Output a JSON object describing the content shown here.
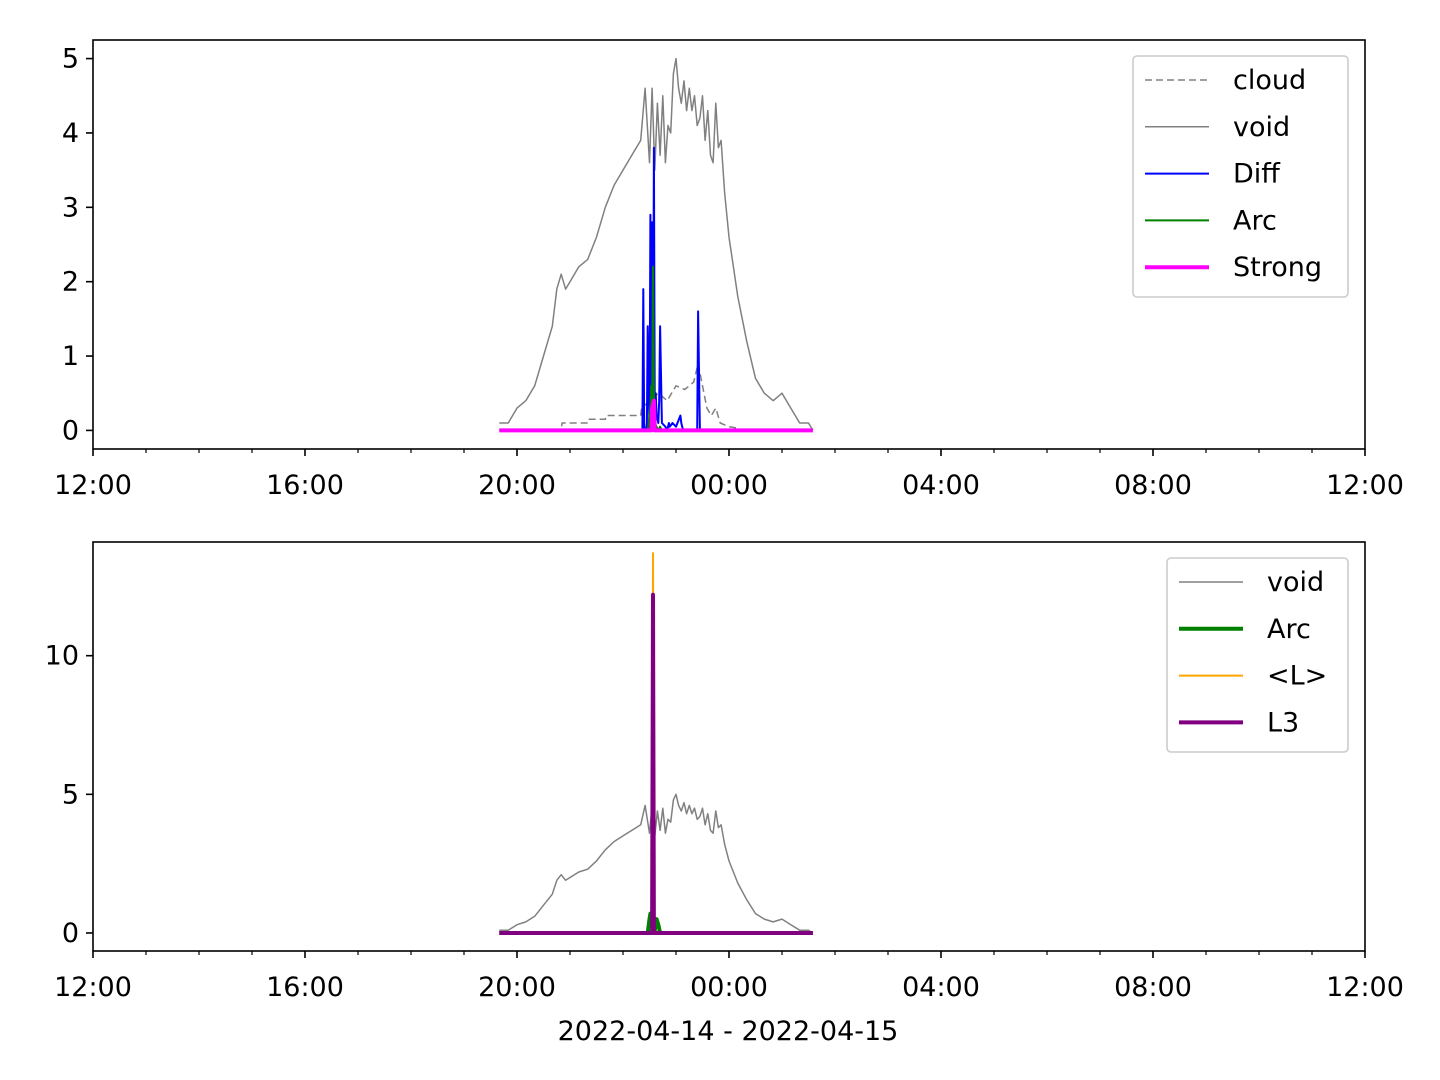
{
  "chart_data": [
    {
      "type": "line",
      "title": "",
      "xlabel": "",
      "ylabel": "",
      "xlim": [
        "2022-04-14T12:00",
        "2022-04-15T12:00"
      ],
      "ylim": [
        -0.25,
        5.25
      ],
      "xticks": [
        "12:00",
        "16:00",
        "20:00",
        "00:00",
        "04:00",
        "08:00",
        "12:00"
      ],
      "xtick_times": [
        "2022-04-14T12:00",
        "2022-04-14T16:00",
        "2022-04-14T20:00",
        "2022-04-15T00:00",
        "2022-04-15T04:00",
        "2022-04-15T08:00",
        "2022-04-15T12:00"
      ],
      "yticks": [
        0,
        1,
        2,
        3,
        4,
        5
      ],
      "legend_position": "upper right",
      "grid": false,
      "series": [
        {
          "name": "cloud",
          "color": "#808080",
          "style": "dashed",
          "width": 1.5,
          "x": [
            "2022-04-14T19:40",
            "2022-04-14T20:50",
            "2022-04-14T20:51",
            "2022-04-14T21:20",
            "2022-04-14T21:21",
            "2022-04-14T21:40",
            "2022-04-14T21:41",
            "2022-04-14T22:20",
            "2022-04-14T22:21",
            "2022-04-14T22:40",
            "2022-04-14T22:50",
            "2022-04-14T23:00",
            "2022-04-14T23:10",
            "2022-04-14T23:20",
            "2022-04-14T23:25",
            "2022-04-14T23:30",
            "2022-04-14T23:35",
            "2022-04-14T23:40",
            "2022-04-14T23:45",
            "2022-04-14T23:50",
            "2022-04-15T00:00",
            "2022-04-15T00:10",
            "2022-04-15T00:15"
          ],
          "y": [
            0,
            0,
            0.1,
            0.1,
            0.15,
            0.15,
            0.2,
            0.2,
            0.3,
            0.5,
            0.4,
            0.6,
            0.55,
            0.65,
            0.9,
            0.6,
            0.3,
            0.2,
            0.3,
            0.1,
            0.05,
            0.03,
            0
          ]
        },
        {
          "name": "void",
          "color": "#808080",
          "style": "solid",
          "width": 1.5,
          "x": [
            "2022-04-14T19:40",
            "2022-04-14T19:50",
            "2022-04-14T20:00",
            "2022-04-14T20:10",
            "2022-04-14T20:20",
            "2022-04-14T20:30",
            "2022-04-14T20:40",
            "2022-04-14T20:45",
            "2022-04-14T20:50",
            "2022-04-14T20:55",
            "2022-04-14T21:00",
            "2022-04-14T21:10",
            "2022-04-14T21:20",
            "2022-04-14T21:30",
            "2022-04-14T21:40",
            "2022-04-14T21:50",
            "2022-04-14T22:00",
            "2022-04-14T22:10",
            "2022-04-14T22:20",
            "2022-04-14T22:25",
            "2022-04-14T22:30",
            "2022-04-14T22:33",
            "2022-04-14T22:36",
            "2022-04-14T22:39",
            "2022-04-14T22:42",
            "2022-04-14T22:45",
            "2022-04-14T22:48",
            "2022-04-14T22:51",
            "2022-04-14T22:54",
            "2022-04-14T22:57",
            "2022-04-14T23:00",
            "2022-04-14T23:03",
            "2022-04-14T23:06",
            "2022-04-14T23:09",
            "2022-04-14T23:12",
            "2022-04-14T23:15",
            "2022-04-14T23:18",
            "2022-04-14T23:21",
            "2022-04-14T23:24",
            "2022-04-14T23:27",
            "2022-04-14T23:30",
            "2022-04-14T23:33",
            "2022-04-14T23:36",
            "2022-04-14T23:39",
            "2022-04-14T23:42",
            "2022-04-14T23:45",
            "2022-04-14T23:48",
            "2022-04-14T23:51",
            "2022-04-14T23:55",
            "2022-04-15T00:00",
            "2022-04-15T00:10",
            "2022-04-15T00:20",
            "2022-04-15T00:30",
            "2022-04-15T00:40",
            "2022-04-15T00:50",
            "2022-04-15T01:00",
            "2022-04-15T01:10",
            "2022-04-15T01:20",
            "2022-04-15T01:30",
            "2022-04-15T01:35"
          ],
          "y": [
            0.1,
            0.1,
            0.3,
            0.4,
            0.6,
            1.0,
            1.4,
            1.9,
            2.1,
            1.9,
            2.0,
            2.2,
            2.3,
            2.6,
            3.0,
            3.3,
            3.5,
            3.7,
            3.9,
            4.6,
            3.6,
            4.6,
            3.5,
            4.4,
            3.7,
            4.5,
            3.6,
            4.1,
            4.0,
            4.8,
            5.0,
            4.6,
            4.4,
            4.7,
            4.3,
            4.6,
            4.3,
            4.5,
            4.1,
            4.2,
            4.5,
            3.9,
            4.3,
            3.7,
            3.6,
            4.4,
            3.8,
            3.9,
            3.2,
            2.6,
            1.8,
            1.2,
            0.7,
            0.5,
            0.4,
            0.5,
            0.3,
            0.1,
            0.1,
            0.0
          ]
        },
        {
          "name": "Diff",
          "color": "#0000ff",
          "style": "solid",
          "width": 2,
          "x": [
            "2022-04-14T22:20",
            "2022-04-14T22:22",
            "2022-04-14T22:23",
            "2022-04-14T22:24",
            "2022-04-14T22:26",
            "2022-04-14T22:27",
            "2022-04-14T22:28",
            "2022-04-14T22:30",
            "2022-04-14T22:31",
            "2022-04-14T22:32",
            "2022-04-14T22:33",
            "2022-04-14T22:34",
            "2022-04-14T22:35",
            "2022-04-14T22:36",
            "2022-04-14T22:37",
            "2022-04-14T22:38",
            "2022-04-14T22:40",
            "2022-04-14T22:41",
            "2022-04-14T22:42",
            "2022-04-14T22:44",
            "2022-04-14T22:48",
            "2022-04-14T22:50",
            "2022-04-14T22:52",
            "2022-04-14T22:53",
            "2022-04-14T22:56",
            "2022-04-14T23:00",
            "2022-04-14T23:05",
            "2022-04-14T23:06",
            "2022-04-14T23:08",
            "2022-04-14T23:10",
            "2022-04-14T23:20",
            "2022-04-14T23:24",
            "2022-04-14T23:25",
            "2022-04-14T23:27",
            "2022-04-14T23:30",
            "2022-04-15T00:00"
          ],
          "y": [
            0,
            0,
            1.9,
            0,
            0,
            0.1,
            1.4,
            0,
            2.9,
            0,
            2.8,
            0,
            3.8,
            0.1,
            0.5,
            0.2,
            0.1,
            0.4,
            1.4,
            0.1,
            0.05,
            0,
            0.1,
            0.05,
            0.1,
            0.05,
            0.2,
            0.1,
            0,
            0,
            0,
            0,
            1.6,
            0,
            0,
            0
          ]
        },
        {
          "name": "Arc",
          "color": "#008000",
          "style": "solid",
          "width": 2,
          "x": [
            "2022-04-14T22:28",
            "2022-04-14T22:31",
            "2022-04-14T22:32",
            "2022-04-14T22:33",
            "2022-04-14T22:34",
            "2022-04-14T22:35",
            "2022-04-14T22:36",
            "2022-04-14T22:40",
            "2022-04-14T22:42",
            "2022-04-14T22:44"
          ],
          "y": [
            0,
            0.3,
            0.6,
            0.2,
            2.2,
            0.5,
            0.1,
            0,
            0.05,
            0
          ]
        },
        {
          "name": "Strong",
          "color": "#ff00ff",
          "style": "solid",
          "width": 4,
          "x": [
            "2022-04-14T19:40",
            "2022-04-14T22:32",
            "2022-04-14T22:33",
            "2022-04-14T22:35",
            "2022-04-14T22:36",
            "2022-04-15T01:35"
          ],
          "y": [
            0,
            0,
            0.3,
            0.4,
            0,
            0
          ]
        }
      ]
    },
    {
      "type": "line",
      "title": "",
      "xlabel": "2022-04-14 - 2022-04-15",
      "ylabel": "",
      "xlim": [
        "2022-04-14T12:00",
        "2022-04-15T12:00"
      ],
      "ylim": [
        -0.65,
        14.1
      ],
      "xticks": [
        "12:00",
        "16:00",
        "20:00",
        "00:00",
        "04:00",
        "08:00",
        "12:00"
      ],
      "xtick_times": [
        "2022-04-14T12:00",
        "2022-04-14T16:00",
        "2022-04-14T20:00",
        "2022-04-15T00:00",
        "2022-04-15T04:00",
        "2022-04-15T08:00",
        "2022-04-15T12:00"
      ],
      "yticks": [
        0,
        5,
        10
      ],
      "legend_position": "upper right",
      "grid": false,
      "series": [
        {
          "name": "void",
          "color": "#808080",
          "style": "solid",
          "width": 1.5,
          "x": [
            "2022-04-14T19:40",
            "2022-04-14T19:50",
            "2022-04-14T20:00",
            "2022-04-14T20:10",
            "2022-04-14T20:20",
            "2022-04-14T20:30",
            "2022-04-14T20:40",
            "2022-04-14T20:45",
            "2022-04-14T20:50",
            "2022-04-14T20:55",
            "2022-04-14T21:00",
            "2022-04-14T21:10",
            "2022-04-14T21:20",
            "2022-04-14T21:30",
            "2022-04-14T21:40",
            "2022-04-14T21:50",
            "2022-04-14T22:00",
            "2022-04-14T22:10",
            "2022-04-14T22:20",
            "2022-04-14T22:25",
            "2022-04-14T22:30",
            "2022-04-14T22:33",
            "2022-04-14T22:36",
            "2022-04-14T22:39",
            "2022-04-14T22:42",
            "2022-04-14T22:45",
            "2022-04-14T22:48",
            "2022-04-14T22:51",
            "2022-04-14T22:54",
            "2022-04-14T22:57",
            "2022-04-14T23:00",
            "2022-04-14T23:03",
            "2022-04-14T23:06",
            "2022-04-14T23:09",
            "2022-04-14T23:12",
            "2022-04-14T23:15",
            "2022-04-14T23:18",
            "2022-04-14T23:21",
            "2022-04-14T23:24",
            "2022-04-14T23:27",
            "2022-04-14T23:30",
            "2022-04-14T23:33",
            "2022-04-14T23:36",
            "2022-04-14T23:39",
            "2022-04-14T23:42",
            "2022-04-14T23:45",
            "2022-04-14T23:48",
            "2022-04-14T23:51",
            "2022-04-14T23:55",
            "2022-04-15T00:00",
            "2022-04-15T00:10",
            "2022-04-15T00:20",
            "2022-04-15T00:30",
            "2022-04-15T00:40",
            "2022-04-15T00:50",
            "2022-04-15T01:00",
            "2022-04-15T01:10",
            "2022-04-15T01:20",
            "2022-04-15T01:30",
            "2022-04-15T01:35"
          ],
          "y": [
            0.1,
            0.1,
            0.3,
            0.4,
            0.6,
            1.0,
            1.4,
            1.9,
            2.1,
            1.9,
            2.0,
            2.2,
            2.3,
            2.6,
            3.0,
            3.3,
            3.5,
            3.7,
            3.9,
            4.6,
            3.6,
            4.6,
            3.5,
            4.4,
            3.7,
            4.5,
            3.6,
            4.1,
            4.0,
            4.8,
            5.0,
            4.6,
            4.4,
            4.7,
            4.3,
            4.6,
            4.3,
            4.5,
            4.1,
            4.2,
            4.5,
            3.9,
            4.3,
            3.7,
            3.6,
            4.4,
            3.8,
            3.9,
            3.2,
            2.6,
            1.8,
            1.2,
            0.7,
            0.5,
            0.4,
            0.5,
            0.3,
            0.1,
            0.1,
            0.0
          ]
        },
        {
          "name": "Arc",
          "color": "#008000",
          "style": "solid",
          "width": 4,
          "x": [
            "2022-04-14T19:40",
            "2022-04-14T22:28",
            "2022-04-14T22:30",
            "2022-04-14T22:31",
            "2022-04-14T22:32",
            "2022-04-14T22:36",
            "2022-04-14T22:38",
            "2022-04-14T22:40",
            "2022-04-14T22:42",
            "2022-04-15T01:35"
          ],
          "y": [
            0,
            0,
            0.5,
            0.7,
            0.3,
            0.1,
            0.5,
            0.3,
            0,
            0
          ]
        },
        {
          "name": "<L>",
          "color": "#ffa500",
          "style": "solid",
          "width": 2,
          "x": [
            "2022-04-14T19:40",
            "2022-04-14T22:33",
            "2022-04-14T22:34",
            "2022-04-14T22:35",
            "2022-04-15T01:35"
          ],
          "y": [
            0,
            0,
            13.7,
            0,
            0
          ]
        },
        {
          "name": "L3",
          "color": "#800080",
          "style": "solid",
          "width": 4,
          "x": [
            "2022-04-14T19:40",
            "2022-04-14T22:33",
            "2022-04-14T22:34",
            "2022-04-14T22:35",
            "2022-04-15T01:35"
          ],
          "y": [
            0,
            0,
            12.2,
            0,
            0
          ]
        }
      ]
    }
  ]
}
